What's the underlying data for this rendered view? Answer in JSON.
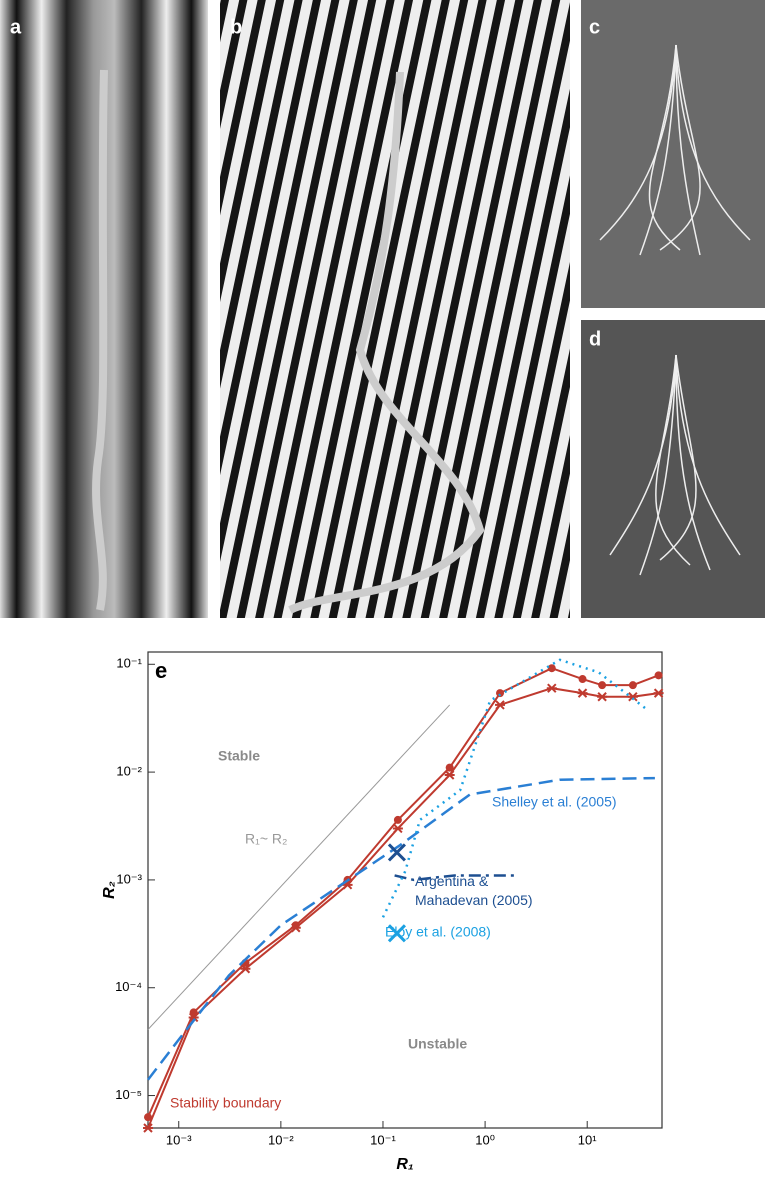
{
  "panels": [
    {
      "label": "a"
    },
    {
      "label": "b"
    },
    {
      "label": "c"
    },
    {
      "label": "d"
    }
  ],
  "chart_data": {
    "type": "line",
    "title": "e",
    "x_label": "R₁",
    "y_label": "R₂",
    "xscale": "log",
    "yscale": "log",
    "xlim": [
      0.0005,
      54
    ],
    "ylim": [
      5e-06,
      0.13
    ],
    "xticks": [
      {
        "value": 0.001,
        "label": "10⁻³"
      },
      {
        "value": 0.01,
        "label": "10⁻²"
      },
      {
        "value": 0.1,
        "label": "10⁻¹"
      },
      {
        "value": 1,
        "label": "10⁰"
      },
      {
        "value": 10,
        "label": "10¹"
      }
    ],
    "yticks": [
      {
        "value": 1e-05,
        "label": "10⁻⁵"
      },
      {
        "value": 0.0001,
        "label": "10⁻⁴"
      },
      {
        "value": 0.001,
        "label": "10⁻³"
      },
      {
        "value": 0.01,
        "label": "10⁻²"
      },
      {
        "value": 0.1,
        "label": "10⁻¹"
      }
    ],
    "series": [
      {
        "name": "Stability boundary",
        "color": "#bf3a2f",
        "style": "solid",
        "marker": "circle",
        "x": [
          0.0005,
          0.0014,
          0.0045,
          0.014,
          0.045,
          0.14,
          0.45,
          1.4,
          4.5,
          9,
          14,
          28,
          50
        ],
        "values": [
          6.3e-06,
          5.9e-05,
          0.00017,
          0.00038,
          0.001,
          0.0036,
          0.011,
          0.054,
          0.092,
          0.073,
          0.064,
          0.064,
          0.079
        ]
      },
      {
        "color": "#bf3a2f",
        "style": "solid",
        "marker": "cross",
        "x": [
          0.0005,
          0.0014,
          0.0045,
          0.014,
          0.045,
          0.14,
          0.45,
          1.4,
          4.5,
          9,
          14,
          28,
          50
        ],
        "values": [
          5e-06,
          5.3e-05,
          0.00015,
          0.00036,
          0.0009,
          0.003,
          0.0094,
          0.042,
          0.06,
          0.054,
          0.05,
          0.05,
          0.054
        ]
      },
      {
        "name": "Shelley et al. (2005)",
        "color": "#2a7fd4",
        "style": "dashed",
        "x": [
          0.0005,
          0.001,
          0.0031,
          0.01,
          0.147,
          0.71,
          5.4,
          46
        ],
        "values": [
          1.4e-05,
          3.3e-05,
          0.00013,
          0.00038,
          0.0021,
          0.0062,
          0.0085,
          0.0088
        ]
      },
      {
        "name": "Argentina & Mahadevan (2005)",
        "color": "#1d4f91",
        "style": "dashdot",
        "x": [
          0.13,
          0.2,
          0.5,
          2
        ],
        "values": [
          0.0011,
          0.001,
          0.0011,
          0.0011
        ]
      },
      {
        "name": "Eloy et al. (2008)",
        "color": "#1ba1e2",
        "style": "dotted",
        "x": [
          0.1,
          0.165,
          0.23,
          0.57,
          1.12,
          5.4,
          13,
          40
        ],
        "values": [
          0.00045,
          0.0012,
          0.0036,
          0.0068,
          0.046,
          0.11,
          0.084,
          0.037
        ]
      }
    ],
    "points": [
      {
        "x": 0.137,
        "y": 0.0018,
        "color": "#1d4f91"
      },
      {
        "x": 0.137,
        "y": 0.00032,
        "color": "#1ba1e2"
      }
    ],
    "reference_line": {
      "label": "R₁~ R₂",
      "color": "#999999",
      "x": [
        0.0005,
        0.45
      ],
      "values": [
        4.1e-05,
        0.042
      ]
    },
    "region_labels": [
      "Stable",
      "Unstable"
    ]
  }
}
